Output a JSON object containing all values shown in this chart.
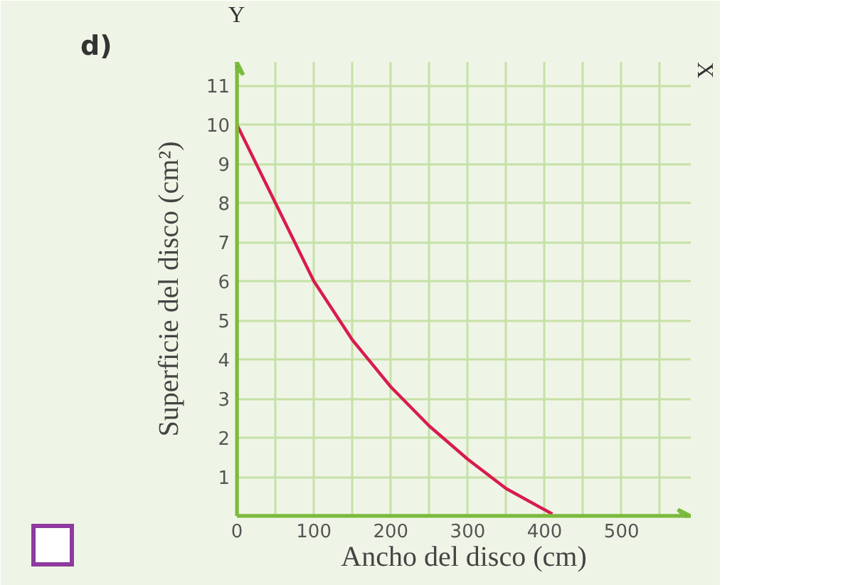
{
  "chart_data": {
    "type": "line",
    "title": "d)",
    "xlabel": "Ancho del disco (cm)",
    "ylabel": "Superficie del disco (cm²)",
    "annotations": [
      "Y",
      "X"
    ],
    "x": [
      0,
      25,
      50,
      75,
      100,
      150,
      200,
      250,
      300,
      350,
      410
    ],
    "series": [
      {
        "color": "#d81b50",
        "values": [
          10,
          9,
          8,
          7,
          6,
          4.5,
          3.3,
          2.3,
          1.45,
          0.7,
          0.05
        ]
      }
    ],
    "xlim": [
      0,
      590
    ],
    "ylim": [
      0,
      11.6
    ],
    "xticks": [
      0,
      {
        "value": 50,
        "label": null
      },
      100,
      {
        "value": 150,
        "label": null
      },
      200,
      {
        "value": 250,
        "label": null
      },
      300,
      {
        "value": 350,
        "label": null
      },
      400,
      {
        "value": 450,
        "label": null
      },
      500,
      {
        "value": 550,
        "label": null
      }
    ],
    "yticks": [
      1,
      2,
      3,
      4,
      5,
      6,
      7,
      8,
      9,
      10,
      11
    ],
    "grid": true,
    "marker": "none",
    "line_style": "solid"
  }
}
